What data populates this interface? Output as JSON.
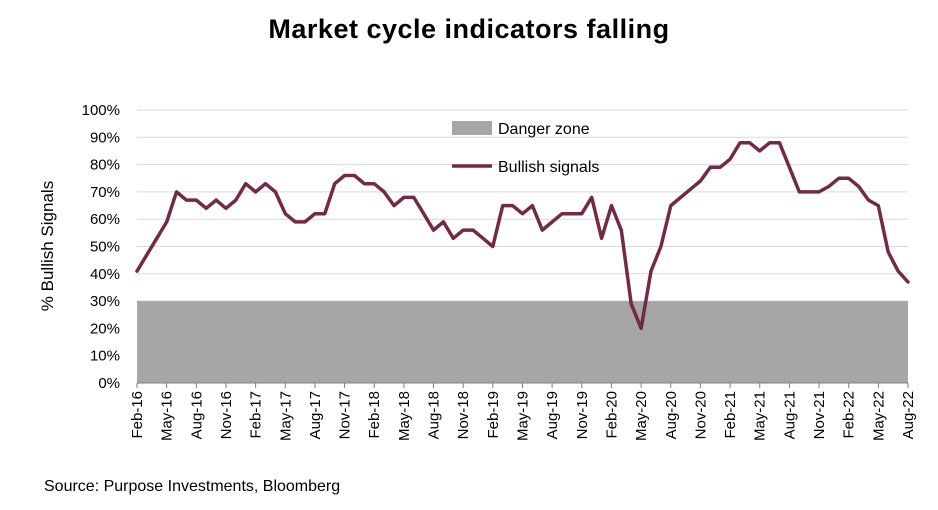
{
  "chart_data": {
    "type": "line",
    "title": "Market cycle indicators falling",
    "ylabel": "% Bullish Signals",
    "xlabel": "",
    "ylim": [
      0,
      100
    ],
    "yticks": [
      "0%",
      "10%",
      "20%",
      "30%",
      "40%",
      "50%",
      "60%",
      "70%",
      "80%",
      "90%",
      "100%"
    ],
    "xticks": [
      "Feb-16",
      "May-16",
      "Aug-16",
      "Nov-16",
      "Feb-17",
      "May-17",
      "Aug-17",
      "Nov-17",
      "Feb-18",
      "May-18",
      "Aug-18",
      "Nov-18",
      "Feb-19",
      "May-19",
      "Aug-19",
      "Nov-19",
      "Feb-20",
      "May-20",
      "Aug-20",
      "Nov-20",
      "Feb-21",
      "May-21",
      "Aug-21",
      "Nov-21",
      "Feb-22",
      "May-22",
      "Aug-22"
    ],
    "grid": true,
    "legend_position": "top-center",
    "danger_zone": {
      "name": "Danger zone",
      "from": 0,
      "to": 30,
      "color": "#a6a6a6"
    },
    "series": [
      {
        "name": "Bullish signals",
        "color": "#722a46",
        "x": [
          "Feb-16",
          "Mar-16",
          "Apr-16",
          "May-16",
          "Jun-16",
          "Jul-16",
          "Aug-16",
          "Sep-16",
          "Oct-16",
          "Nov-16",
          "Dec-16",
          "Jan-17",
          "Feb-17",
          "Mar-17",
          "Apr-17",
          "May-17",
          "Jun-17",
          "Jul-17",
          "Aug-17",
          "Sep-17",
          "Oct-17",
          "Nov-17",
          "Dec-17",
          "Jan-18",
          "Feb-18",
          "Mar-18",
          "Apr-18",
          "May-18",
          "Jun-18",
          "Jul-18",
          "Aug-18",
          "Sep-18",
          "Oct-18",
          "Nov-18",
          "Dec-18",
          "Jan-19",
          "Feb-19",
          "Mar-19",
          "Apr-19",
          "May-19",
          "Jun-19",
          "Jul-19",
          "Aug-19",
          "Sep-19",
          "Oct-19",
          "Nov-19",
          "Dec-19",
          "Jan-20",
          "Feb-20",
          "Mar-20",
          "Apr-20",
          "May-20",
          "Jun-20",
          "Jul-20",
          "Aug-20",
          "Sep-20",
          "Oct-20",
          "Nov-20",
          "Dec-20",
          "Jan-21",
          "Feb-21",
          "Mar-21",
          "Apr-21",
          "May-21",
          "Jun-21",
          "Jul-21",
          "Aug-21",
          "Sep-21",
          "Oct-21",
          "Nov-21",
          "Dec-21",
          "Jan-22",
          "Feb-22",
          "Mar-22",
          "Apr-22",
          "May-22",
          "Jun-22",
          "Jul-22",
          "Aug-22"
        ],
        "values": [
          41,
          47,
          53,
          59,
          70,
          67,
          67,
          64,
          67,
          64,
          67,
          73,
          70,
          73,
          70,
          62,
          59,
          59,
          62,
          62,
          73,
          76,
          76,
          73,
          73,
          70,
          65,
          68,
          68,
          62,
          56,
          59,
          53,
          56,
          56,
          53,
          50,
          65,
          65,
          62,
          65,
          56,
          59,
          62,
          62,
          62,
          68,
          53,
          65,
          56,
          29,
          20,
          41,
          50,
          65,
          68,
          71,
          74,
          79,
          79,
          82,
          88,
          88,
          85,
          88,
          88,
          79,
          70,
          70,
          70,
          72,
          75,
          75,
          72,
          67,
          65,
          48,
          41,
          37
        ]
      }
    ]
  }
}
